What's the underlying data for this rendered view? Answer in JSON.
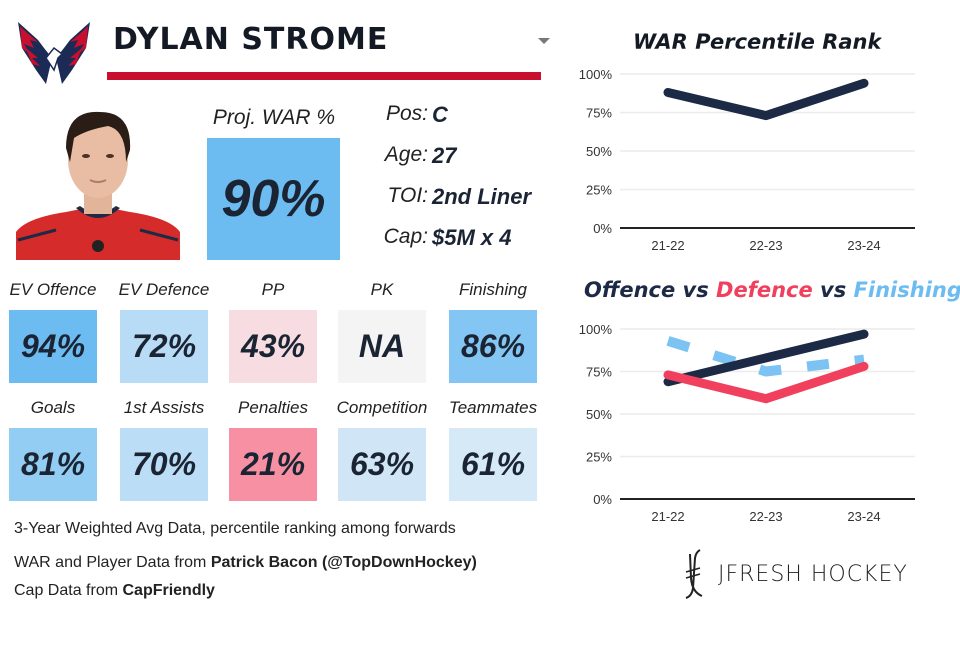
{
  "header": {
    "team_logo": "capitals-eagle-logo",
    "player_name": "DYLAN STROME",
    "dropdown_icon": "caret-down-icon",
    "accent_color": "#c8102e"
  },
  "player": {
    "photo": "player-headshot",
    "proj_war_label": "Proj. WAR %",
    "proj_war_value": "90%",
    "proj_war_color": "#6cbcf2",
    "info": [
      {
        "key": "Pos:",
        "value": "C"
      },
      {
        "key": "Age:",
        "value": "27"
      },
      {
        "key": "TOI:",
        "value": "2nd Liner"
      },
      {
        "key": "Cap:",
        "value": "$5M x 4"
      }
    ]
  },
  "stats_row1": [
    {
      "label": "EV Offence",
      "value": "94%",
      "color": "#6cbcf2"
    },
    {
      "label": "EV Defence",
      "value": "72%",
      "color": "#b9dcf6"
    },
    {
      "label": "PP",
      "value": "43%",
      "color": "#f7dde2"
    },
    {
      "label": "PK",
      "value": "NA",
      "color": "#f4f4f5"
    },
    {
      "label": "Finishing",
      "value": "86%",
      "color": "#84c6f3"
    }
  ],
  "stats_row2": [
    {
      "label": "Goals",
      "value": "81%",
      "color": "#94cdf4"
    },
    {
      "label": "1st Assists",
      "value": "70%",
      "color": "#bcddf6"
    },
    {
      "label": "Penalties",
      "value": "21%",
      "color": "#f690a2"
    },
    {
      "label": "Competition",
      "value": "63%",
      "color": "#d0e6f6"
    },
    {
      "label": "Teammates",
      "value": "61%",
      "color": "#d6e9f7"
    }
  ],
  "footnotes": {
    "line1": "3-Year Weighted Avg Data, percentile ranking among forwards",
    "line2_prefix": "WAR and Player Data from ",
    "line2_bold": "Patrick Bacon (@TopDownHockey)",
    "line3_prefix": "Cap Data from ",
    "line3_bold": "CapFriendly"
  },
  "brand": {
    "icon": "jfresh-hockey-sticks-icon",
    "text": "JFRESH HOCKEY"
  },
  "chart_data": [
    {
      "type": "line",
      "title": "WAR Percentile Rank",
      "x": [
        "21-22",
        "22-23",
        "23-24"
      ],
      "series": [
        {
          "name": "WAR",
          "values": [
            88,
            73,
            94
          ],
          "color": "#1c2a45",
          "dashed": false
        }
      ],
      "ylim": [
        0,
        100
      ],
      "yticks": [
        "0%",
        "25%",
        "50%",
        "75%",
        "100%"
      ],
      "xlabel": "",
      "ylabel": "",
      "grid": true,
      "legend": "none"
    },
    {
      "type": "line",
      "title_parts": [
        {
          "text": "Offence",
          "color": "#1c2a45"
        },
        {
          "text": " vs ",
          "color": "#1c2a45"
        },
        {
          "text": "Defence",
          "color": "#f0405e"
        },
        {
          "text": " vs ",
          "color": "#1c2a45"
        },
        {
          "text": "Finishing",
          "color": "#6cbcf2"
        }
      ],
      "title": "Offence vs Defence vs Finishing",
      "x": [
        "21-22",
        "22-23",
        "23-24"
      ],
      "series": [
        {
          "name": "Finishing",
          "values": [
            93,
            75,
            82
          ],
          "color": "#7cc2f2",
          "dashed": true
        },
        {
          "name": "Offence",
          "values": [
            69,
            83,
            97
          ],
          "color": "#1c2a45",
          "dashed": false
        },
        {
          "name": "Defence",
          "values": [
            73,
            59,
            78
          ],
          "color": "#f0405e",
          "dashed": false
        }
      ],
      "ylim": [
        0,
        100
      ],
      "yticks": [
        "0%",
        "25%",
        "50%",
        "75%",
        "100%"
      ],
      "xlabel": "",
      "ylabel": "",
      "grid": true,
      "legend": "title (color-coded)"
    }
  ]
}
